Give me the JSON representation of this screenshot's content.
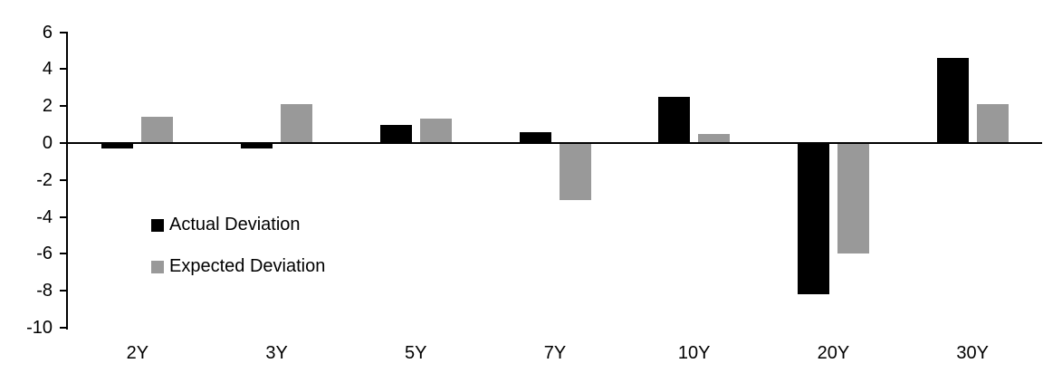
{
  "chart_data": {
    "type": "bar",
    "title": "",
    "xlabel": "",
    "ylabel": "",
    "grid": false,
    "background_color": "#ffffff",
    "axis_color": "#000000",
    "categories": [
      "2Y",
      "3Y",
      "5Y",
      "7Y",
      "10Y",
      "20Y",
      "30Y"
    ],
    "series": [
      {
        "name": "Actual Deviation",
        "color": "#000000",
        "values": [
          -0.3,
          -0.3,
          1.0,
          0.6,
          2.5,
          -8.2,
          4.6
        ]
      },
      {
        "name": "Expected Deviation",
        "color": "#999999",
        "values": [
          1.4,
          2.1,
          1.3,
          -3.1,
          0.5,
          -6.0,
          2.1
        ]
      }
    ],
    "y_axis": {
      "min": -10,
      "max": 6,
      "tick_step": 2,
      "ticks": [
        6,
        4,
        2,
        0,
        -2,
        -4,
        -6,
        -8,
        -10
      ],
      "tick_labels": [
        "6",
        "4",
        "2",
        "0",
        "-2",
        "-4",
        "-6",
        "-8",
        "-10"
      ]
    },
    "legend_position": "inside-left-middle"
  }
}
